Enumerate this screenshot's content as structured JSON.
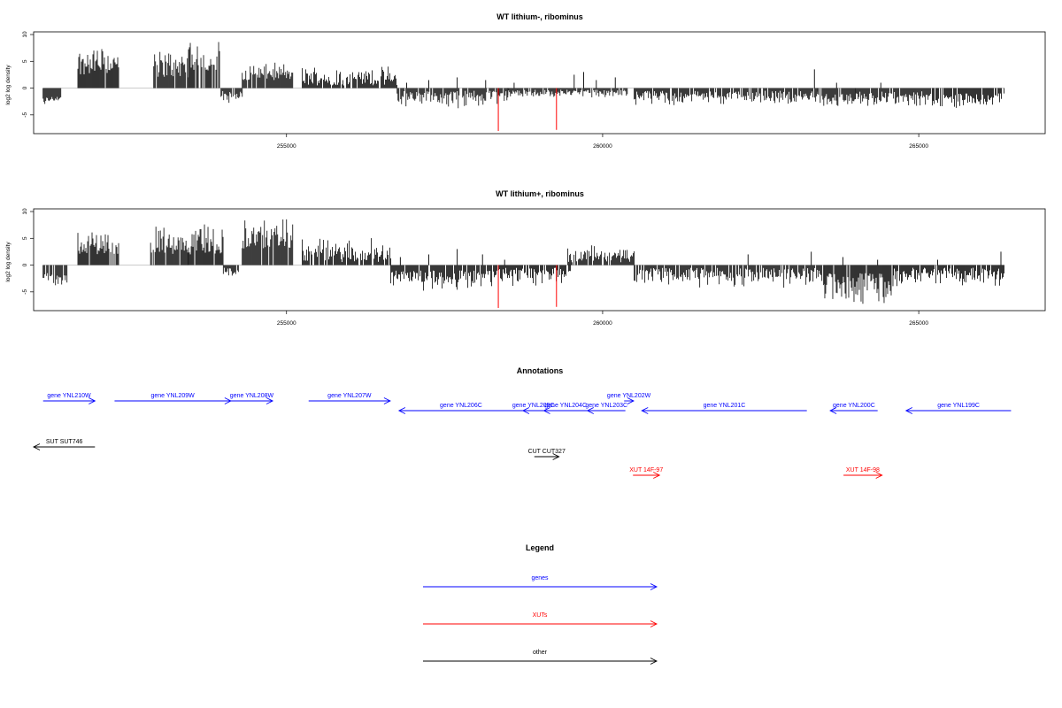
{
  "colors": {
    "gene": "#0000ff",
    "xut": "#ff0000",
    "other": "#000000",
    "highlight": "#ff0000",
    "bars": "#000000"
  },
  "chart_data": [
    {
      "type": "bar",
      "title": "WT lithium-, ribominus",
      "ylabel": "log2 log density",
      "xlabel": "",
      "xlim": [
        251000,
        267000
      ],
      "ylim": [
        -8.5,
        10.5
      ],
      "yticks": [
        10,
        5,
        0,
        -5
      ],
      "xticks": [
        255000,
        260000,
        265000
      ],
      "grid": false,
      "highlight_positions": [
        258350,
        259270
      ],
      "highlight_values": [
        -8.0,
        -7.8
      ],
      "segments": [
        {
          "from": 251150,
          "to": 251450,
          "sign": -1,
          "low": 1.5,
          "high": 3.5
        },
        {
          "from": 251700,
          "to": 252350,
          "sign": 1,
          "low": 2.5,
          "high": 8.5
        },
        {
          "from": 252900,
          "to": 253450,
          "sign": 1,
          "low": 2.0,
          "high": 8.0
        },
        {
          "from": 253450,
          "to": 253950,
          "sign": 1,
          "low": 3.0,
          "high": 10.0
        },
        {
          "from": 253950,
          "to": 254300,
          "sign": -1,
          "low": 0.5,
          "high": 3.0
        },
        {
          "from": 254300,
          "to": 255100,
          "sign": 1,
          "low": 1.5,
          "high": 5.0
        },
        {
          "from": 255250,
          "to": 256750,
          "sign": 1,
          "low": 0.5,
          "high": 4.5
        },
        {
          "from": 256750,
          "to": 258500,
          "sign": -1,
          "low": 0.5,
          "high": 4.0
        },
        {
          "from": 258500,
          "to": 260400,
          "sign": -1,
          "low": 0.3,
          "high": 2.0
        },
        {
          "from": 260500,
          "to": 263400,
          "sign": -1,
          "low": 0.5,
          "high": 3.5
        },
        {
          "from": 263400,
          "to": 264000,
          "sign": -1,
          "low": 1.0,
          "high": 4.0
        },
        {
          "from": 264000,
          "to": 265200,
          "sign": -1,
          "low": 0.5,
          "high": 3.5
        },
        {
          "from": 265200,
          "to": 266350,
          "sign": -1,
          "low": 1.0,
          "high": 4.0
        }
      ],
      "spikes": [
        {
          "x": 256900,
          "y": 1.0
        },
        {
          "x": 257250,
          "y": 1.5
        },
        {
          "x": 257700,
          "y": 2.0
        },
        {
          "x": 258150,
          "y": 1.5
        },
        {
          "x": 258600,
          "y": 1.0
        },
        {
          "x": 259550,
          "y": 2.5
        },
        {
          "x": 259700,
          "y": 3.0
        },
        {
          "x": 259900,
          "y": 1.5
        },
        {
          "x": 260200,
          "y": 2.0
        },
        {
          "x": 263350,
          "y": 3.5
        },
        {
          "x": 263700,
          "y": 1.0
        },
        {
          "x": 264400,
          "y": 1.0
        }
      ]
    },
    {
      "type": "bar",
      "title": "WT lithium+, ribominus",
      "ylabel": "log2 log density",
      "xlabel": "",
      "xlim": [
        251000,
        267000
      ],
      "ylim": [
        -8.5,
        10.5
      ],
      "yticks": [
        10,
        5,
        0,
        -5
      ],
      "xticks": [
        255000,
        260000,
        265000
      ],
      "grid": false,
      "highlight_positions": [
        258350,
        259270
      ],
      "highlight_values": [
        -8.0,
        -7.8
      ],
      "segments": [
        {
          "from": 251150,
          "to": 251550,
          "sign": -1,
          "low": 1.5,
          "high": 4.5
        },
        {
          "from": 251700,
          "to": 252350,
          "sign": 1,
          "low": 2.0,
          "high": 7.0
        },
        {
          "from": 252850,
          "to": 253450,
          "sign": 1,
          "low": 2.0,
          "high": 8.0
        },
        {
          "from": 253450,
          "to": 254000,
          "sign": 1,
          "low": 2.0,
          "high": 9.0
        },
        {
          "from": 254000,
          "to": 254250,
          "sign": -1,
          "low": 0.5,
          "high": 2.5
        },
        {
          "from": 254300,
          "to": 255100,
          "sign": 1,
          "low": 3.0,
          "high": 9.0
        },
        {
          "from": 255250,
          "to": 256650,
          "sign": 1,
          "low": 0.5,
          "high": 5.5
        },
        {
          "from": 256650,
          "to": 258300,
          "sign": -1,
          "low": 1.0,
          "high": 5.0
        },
        {
          "from": 258300,
          "to": 259500,
          "sign": -1,
          "low": 0.5,
          "high": 4.0
        },
        {
          "from": 259450,
          "to": 260500,
          "sign": 1,
          "low": 0.5,
          "high": 4.0
        },
        {
          "from": 260500,
          "to": 263500,
          "sign": -1,
          "low": 0.5,
          "high": 4.5
        },
        {
          "from": 263500,
          "to": 264600,
          "sign": -1,
          "low": 1.5,
          "high": 8.0
        },
        {
          "from": 264600,
          "to": 266350,
          "sign": -1,
          "low": 0.5,
          "high": 4.5
        }
      ],
      "spikes": [
        {
          "x": 256800,
          "y": 1.5
        },
        {
          "x": 257250,
          "y": 2.0
        },
        {
          "x": 257700,
          "y": 3.0
        },
        {
          "x": 258100,
          "y": 2.0
        },
        {
          "x": 258450,
          "y": 1.0
        },
        {
          "x": 262300,
          "y": 2.0
        },
        {
          "x": 263300,
          "y": 2.5
        },
        {
          "x": 263800,
          "y": 1.5
        },
        {
          "x": 264350,
          "y": 1.0
        },
        {
          "x": 265300,
          "y": 1.0
        },
        {
          "x": 266300,
          "y": 2.5
        }
      ]
    }
  ],
  "annotations": {
    "title": "Annotations",
    "features": [
      {
        "label": "gene YNL210W",
        "kind": "gene",
        "strand": "+",
        "start": 251150,
        "end": 251970,
        "row": 0
      },
      {
        "label": "gene YNL209W",
        "kind": "gene",
        "strand": "+",
        "start": 252280,
        "end": 254120,
        "row": 0
      },
      {
        "label": "gene YNL208W",
        "kind": "gene",
        "strand": "+",
        "start": 254120,
        "end": 254780,
        "row": 0
      },
      {
        "label": "gene YNL207W",
        "kind": "gene",
        "strand": "+",
        "start": 255350,
        "end": 256640,
        "row": 0
      },
      {
        "label": "gene YNL206C",
        "kind": "gene",
        "strand": "-",
        "start": 256780,
        "end": 258740,
        "row": 1
      },
      {
        "label": "gene YNL205C",
        "kind": "gene",
        "strand": "-",
        "start": 258740,
        "end": 259070,
        "row": 1
      },
      {
        "label": "gene YNL204C",
        "kind": "gene",
        "strand": "-",
        "start": 259070,
        "end": 259760,
        "row": 1
      },
      {
        "label": "gene YNL203C",
        "kind": "gene",
        "strand": "-",
        "start": 259760,
        "end": 260360,
        "row": 1
      },
      {
        "label": "gene YNL202W",
        "kind": "gene",
        "strand": "+",
        "start": 260340,
        "end": 260490,
        "row": 0
      },
      {
        "label": "gene YNL201C",
        "kind": "gene",
        "strand": "-",
        "start": 260620,
        "end": 263230,
        "row": 1
      },
      {
        "label": "gene YNL200C",
        "kind": "gene",
        "strand": "-",
        "start": 263600,
        "end": 264350,
        "row": 1
      },
      {
        "label": "gene YNL199C",
        "kind": "gene",
        "strand": "-",
        "start": 264800,
        "end": 266460,
        "row": 1
      },
      {
        "label": "SUT SUT746",
        "kind": "other",
        "strand": "-",
        "start": 251000,
        "end": 251970,
        "row": 4
      },
      {
        "label": "CUT CUT327",
        "kind": "other",
        "strand": "+",
        "start": 258920,
        "end": 259310,
        "row": 5
      },
      {
        "label": "XUT 14F-97",
        "kind": "xut",
        "strand": "+",
        "start": 260480,
        "end": 260900,
        "row": 6
      },
      {
        "label": "XUT 14F-98",
        "kind": "xut",
        "strand": "+",
        "start": 263810,
        "end": 264420,
        "row": 6
      }
    ]
  },
  "legend": {
    "title": "Legend",
    "items": [
      {
        "label": "genes",
        "kind": "gene"
      },
      {
        "label": "XUTs",
        "kind": "xut"
      },
      {
        "label": "other",
        "kind": "other"
      }
    ]
  }
}
